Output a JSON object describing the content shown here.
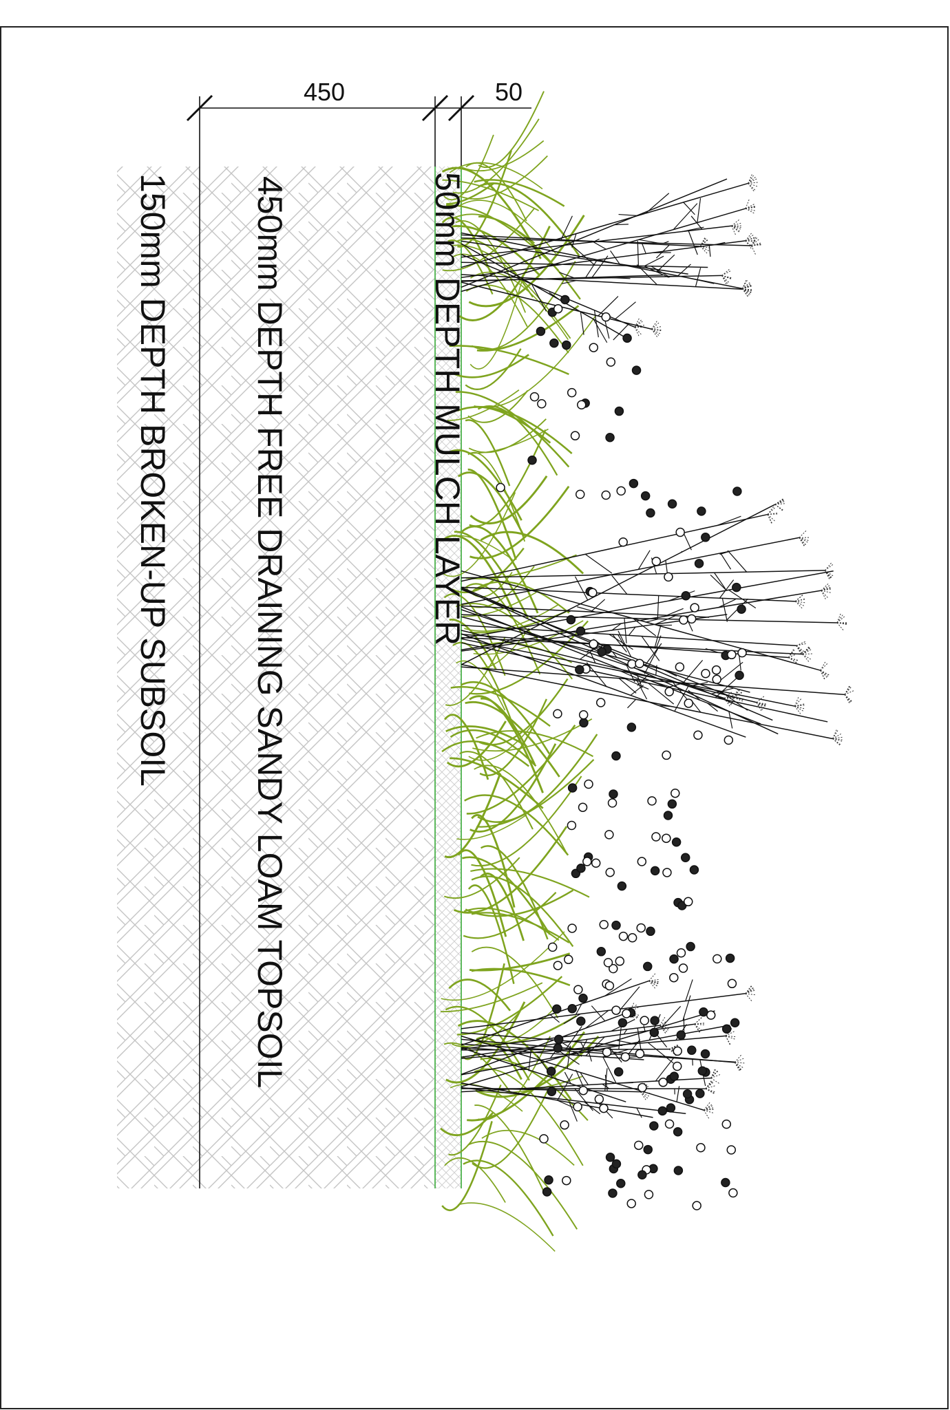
{
  "dimensions": {
    "topsoil": "450",
    "mulch": "50"
  },
  "layers": {
    "mulch": "50mm DEPTH MULCH LAYER",
    "topsoil": "450mm DEPTH FREE DRAINING SANDY LOAM TOPSOIL",
    "subsoil": "150mm DEPTH BROKEN-UP SUBSOIL"
  }
}
